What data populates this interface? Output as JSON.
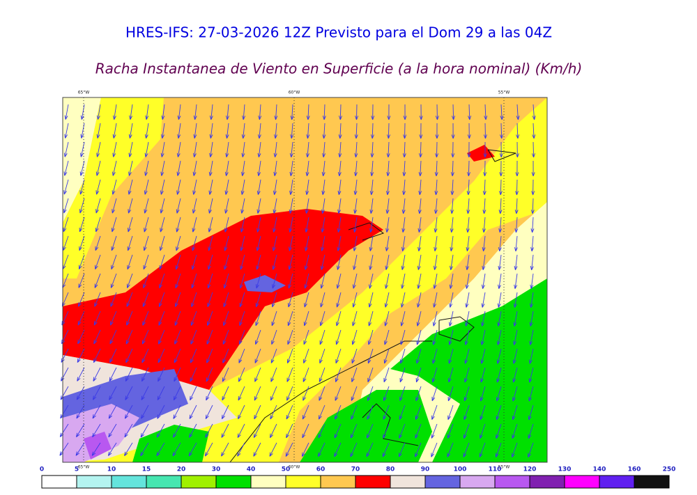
{
  "header": {
    "title": "HRES-IFS: 27-03-2026 12Z Previsto para el Dom 29 a las 04Z",
    "subtitle": "Racha Instantanea de Viento en Superficie (a la hora nominal) (Km/h)"
  },
  "map": {
    "lon_labels_top": [
      "65°W",
      "60°W",
      "55°W"
    ],
    "lon_labels_bottom": [
      "65°W",
      "60°W",
      "55°W"
    ]
  },
  "legend": {
    "levels": [
      0,
      5,
      10,
      15,
      20,
      30,
      40,
      50,
      60,
      70,
      80,
      90,
      100,
      110,
      120,
      130,
      140,
      160,
      250
    ],
    "colors": [
      "#ffffff",
      "#b4f4f0",
      "#64e4dc",
      "#46e6b0",
      "#a0f000",
      "#00e000",
      "#ffffc0",
      "#ffff28",
      "#ffc850",
      "#ff0000",
      "#f0e4dc",
      "#6464e0",
      "#d8a8f0",
      "#b858f0",
      "#8020b0",
      "#ff00ff",
      "#6020f0",
      "#111111"
    ]
  }
}
